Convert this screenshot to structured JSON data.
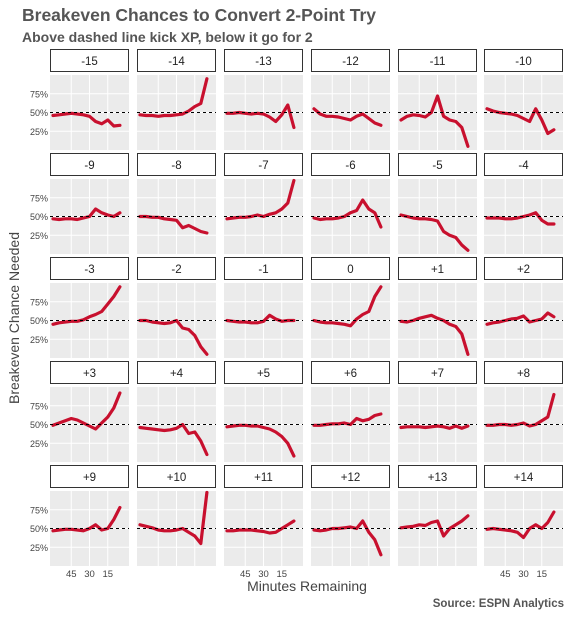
{
  "title": "Breakeven Chances to Convert 2-Point Try",
  "subtitle": "Above dashed line kick XP, below it go for 2",
  "source": "Source: ESPN Analytics",
  "chart_data": {
    "type": "line",
    "facet_by": "score differential",
    "xlabel": "Minutes Remaining",
    "ylabel": "Breakeven Chance Needed",
    "x_reversed": true,
    "xlim": [
      60,
      0
    ],
    "ylim": [
      0,
      100
    ],
    "xticks": [
      45,
      30,
      15
    ],
    "xtick_labels": [
      "45",
      "30",
      "15"
    ],
    "yticks": [
      75,
      50,
      25
    ],
    "ytick_labels": [
      "75%",
      "50%",
      "25%"
    ],
    "reference_line": {
      "y": 50,
      "style": "dashed"
    },
    "line_color": "#c8102e",
    "x": [
      60,
      55,
      50,
      45,
      40,
      35,
      30,
      25,
      20,
      15,
      10,
      5
    ],
    "panels": [
      {
        "label": "-15",
        "y": [
          46,
          47,
          48,
          49,
          48,
          47,
          45,
          38,
          35,
          40,
          32,
          33
        ]
      },
      {
        "label": "-14",
        "y": [
          47,
          46,
          46,
          45,
          46,
          46,
          47,
          48,
          52,
          58,
          62,
          95
        ]
      },
      {
        "label": "-13",
        "y": [
          49,
          49,
          50,
          49,
          48,
          49,
          48,
          44,
          38,
          47,
          60,
          30
        ]
      },
      {
        "label": "-12",
        "y": [
          55,
          48,
          45,
          45,
          44,
          42,
          40,
          45,
          48,
          42,
          36,
          33
        ]
      },
      {
        "label": "-11",
        "y": [
          40,
          45,
          47,
          46,
          44,
          50,
          72,
          45,
          40,
          38,
          30,
          5
        ]
      },
      {
        "label": "-10",
        "y": [
          55,
          52,
          50,
          49,
          48,
          46,
          42,
          38,
          55,
          40,
          22,
          27
        ]
      },
      {
        "label": "-9",
        "y": [
          47,
          46,
          47,
          47,
          46,
          48,
          50,
          60,
          55,
          52,
          50,
          55
        ]
      },
      {
        "label": "-8",
        "y": [
          50,
          50,
          49,
          49,
          47,
          46,
          45,
          35,
          38,
          34,
          30,
          28
        ]
      },
      {
        "label": "-7",
        "y": [
          47,
          48,
          49,
          49,
          50,
          52,
          50,
          53,
          55,
          60,
          68,
          98
        ]
      },
      {
        "label": "-6",
        "y": [
          48,
          46,
          47,
          47,
          48,
          50,
          55,
          58,
          72,
          60,
          55,
          36
        ]
      },
      {
        "label": "-5",
        "y": [
          52,
          50,
          48,
          47,
          47,
          46,
          44,
          30,
          25,
          22,
          12,
          5
        ]
      },
      {
        "label": "-4",
        "y": [
          48,
          48,
          48,
          47,
          47,
          48,
          50,
          52,
          55,
          45,
          40,
          40
        ]
      },
      {
        "label": "-3",
        "y": [
          45,
          47,
          48,
          49,
          49,
          51,
          55,
          58,
          62,
          72,
          82,
          95
        ]
      },
      {
        "label": "-2",
        "y": [
          50,
          50,
          48,
          47,
          46,
          47,
          50,
          40,
          38,
          30,
          15,
          5
        ]
      },
      {
        "label": "-1",
        "y": [
          50,
          49,
          48,
          48,
          47,
          47,
          49,
          57,
          52,
          49,
          50,
          50
        ]
      },
      {
        "label": "0",
        "y": [
          50,
          48,
          47,
          47,
          46,
          45,
          43,
          52,
          58,
          62,
          82,
          95
        ]
      },
      {
        "label": "+1",
        "y": [
          49,
          48,
          50,
          53,
          55,
          57,
          53,
          50,
          45,
          42,
          32,
          5
        ]
      },
      {
        "label": "+2",
        "y": [
          45,
          47,
          48,
          50,
          52,
          53,
          56,
          48,
          50,
          52,
          60,
          55
        ]
      },
      {
        "label": "+3",
        "y": [
          49,
          52,
          55,
          58,
          56,
          52,
          48,
          44,
          52,
          60,
          72,
          92
        ]
      },
      {
        "label": "+4",
        "y": [
          46,
          45,
          44,
          43,
          42,
          43,
          45,
          50,
          38,
          40,
          28,
          10
        ]
      },
      {
        "label": "+5",
        "y": [
          47,
          48,
          49,
          49,
          48,
          48,
          46,
          44,
          40,
          34,
          25,
          8
        ]
      },
      {
        "label": "+6",
        "y": [
          49,
          49,
          50,
          51,
          51,
          52,
          50,
          58,
          55,
          57,
          62,
          64
        ]
      },
      {
        "label": "+7",
        "y": [
          46,
          47,
          47,
          47,
          46,
          47,
          48,
          47,
          45,
          48,
          45,
          48
        ]
      },
      {
        "label": "+8",
        "y": [
          49,
          49,
          50,
          50,
          49,
          50,
          52,
          48,
          50,
          55,
          60,
          90
        ]
      },
      {
        "label": "+9",
        "y": [
          47,
          48,
          49,
          49,
          48,
          47,
          50,
          55,
          48,
          50,
          62,
          78
        ]
      },
      {
        "label": "+10",
        "y": [
          55,
          53,
          51,
          48,
          47,
          47,
          48,
          50,
          45,
          40,
          30,
          98
        ]
      },
      {
        "label": "+11",
        "y": [
          47,
          47,
          48,
          48,
          48,
          47,
          46,
          44,
          45,
          50,
          55,
          60
        ]
      },
      {
        "label": "+12",
        "y": [
          48,
          47,
          48,
          50,
          50,
          51,
          52,
          50,
          60,
          45,
          35,
          15
        ]
      },
      {
        "label": "+13",
        "y": [
          51,
          52,
          53,
          55,
          54,
          58,
          60,
          40,
          50,
          55,
          60,
          67
        ]
      },
      {
        "label": "+14",
        "y": [
          49,
          50,
          49,
          48,
          47,
          45,
          38,
          50,
          55,
          50,
          58,
          72
        ]
      }
    ]
  }
}
